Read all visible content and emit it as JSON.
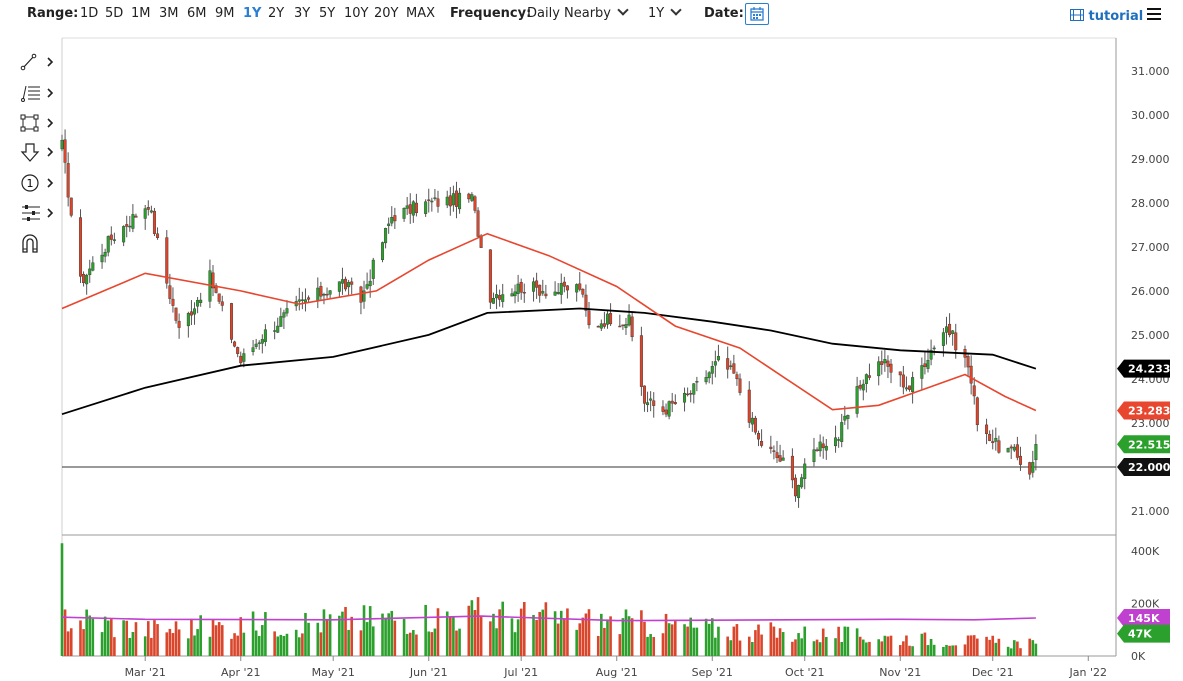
{
  "toolbar": {
    "range_label": "Range:",
    "ranges": [
      "1D",
      "5D",
      "1M",
      "3M",
      "6M",
      "9M",
      "1Y",
      "2Y",
      "3Y",
      "5Y",
      "10Y",
      "20Y",
      "MAX"
    ],
    "active_range": "1Y",
    "frequency_label": "Frequency:",
    "frequency_value": "Daily Nearby",
    "period_value": "1Y",
    "date_label": "Date:",
    "tutorial_label": "tutorial"
  },
  "tools": [
    "line-tool-icon",
    "fib-tool-icon",
    "rectangle-tool-icon",
    "arrow-tool-icon",
    "annotation-tool-icon",
    "indicators-tool-icon",
    "magnet-tool-icon"
  ],
  "colors": {
    "up": "#2ca02c",
    "down": "#d9462b",
    "ma_short": "#e8462e",
    "ma_long": "#000000",
    "volume_avg": "#c040d0",
    "accent": "#2a7fd4"
  },
  "chart_data": [
    {
      "type": "candlestick",
      "x_range": [
        "2021-02-02",
        "2022-01-10"
      ],
      "x_ticks": [
        {
          "date": "2021-03-01",
          "label": "Mar '21"
        },
        {
          "date": "2021-04-01",
          "label": "Apr '21"
        },
        {
          "date": "2021-05-01",
          "label": "May '21"
        },
        {
          "date": "2021-06-01",
          "label": "Jun '21"
        },
        {
          "date": "2021-07-01",
          "label": "Jul '21"
        },
        {
          "date": "2021-08-01",
          "label": "Aug '21"
        },
        {
          "date": "2021-09-01",
          "label": "Sep '21"
        },
        {
          "date": "2021-10-01",
          "label": "Oct '21"
        },
        {
          "date": "2021-11-01",
          "label": "Nov '21"
        },
        {
          "date": "2021-12-01",
          "label": "Dec '21"
        },
        {
          "date": "2022-01-01",
          "label": "Jan '22"
        }
      ],
      "ylim": [
        20.5,
        31.7
      ],
      "y_ticks": [
        "21.000",
        "22.000",
        "23.000",
        "24.000",
        "25.000",
        "26.000",
        "27.000",
        "28.000",
        "29.000",
        "30.000",
        "31.000"
      ],
      "price_anchors": [
        {
          "date": "2021-02-02",
          "close": 29.3
        },
        {
          "date": "2021-02-08",
          "close": 26.2
        },
        {
          "date": "2021-02-18",
          "close": 27.2
        },
        {
          "date": "2021-03-02",
          "close": 28.0
        },
        {
          "date": "2021-03-08",
          "close": 26.2
        },
        {
          "date": "2021-03-12",
          "close": 25.1
        },
        {
          "date": "2021-03-22",
          "close": 26.3
        },
        {
          "date": "2021-04-01",
          "close": 24.4
        },
        {
          "date": "2021-04-08",
          "close": 25.0
        },
        {
          "date": "2021-04-20",
          "close": 25.7
        },
        {
          "date": "2021-05-04",
          "close": 26.2
        },
        {
          "date": "2021-05-10",
          "close": 25.8
        },
        {
          "date": "2021-05-20",
          "close": 27.7
        },
        {
          "date": "2021-06-01",
          "close": 28.0
        },
        {
          "date": "2021-06-15",
          "close": 28.1
        },
        {
          "date": "2021-06-21",
          "close": 25.9
        },
        {
          "date": "2021-07-01",
          "close": 26.1
        },
        {
          "date": "2021-07-12",
          "close": 26.0
        },
        {
          "date": "2021-07-20",
          "close": 26.1
        },
        {
          "date": "2021-07-23",
          "close": 25.2
        },
        {
          "date": "2021-07-30",
          "close": 25.4
        },
        {
          "date": "2021-08-05",
          "close": 25.3
        },
        {
          "date": "2021-08-10",
          "close": 23.5
        },
        {
          "date": "2021-08-16",
          "close": 23.3
        },
        {
          "date": "2021-08-24",
          "close": 23.6
        },
        {
          "date": "2021-09-03",
          "close": 24.4
        },
        {
          "date": "2021-09-08",
          "close": 24.1
        },
        {
          "date": "2021-09-16",
          "close": 22.6
        },
        {
          "date": "2021-09-24",
          "close": 22.1
        },
        {
          "date": "2021-09-28",
          "close": 21.5
        },
        {
          "date": "2021-10-05",
          "close": 22.5
        },
        {
          "date": "2021-10-12",
          "close": 22.7
        },
        {
          "date": "2021-10-20",
          "close": 24.0
        },
        {
          "date": "2021-10-26",
          "close": 24.4
        },
        {
          "date": "2021-11-04",
          "close": 23.8
        },
        {
          "date": "2021-11-12",
          "close": 24.8
        },
        {
          "date": "2021-11-16",
          "close": 25.2
        },
        {
          "date": "2021-11-23",
          "close": 24.3
        },
        {
          "date": "2021-11-26",
          "close": 23.1
        },
        {
          "date": "2021-12-02",
          "close": 22.5
        },
        {
          "date": "2021-12-08",
          "close": 22.3
        },
        {
          "date": "2021-12-13",
          "close": 21.9
        },
        {
          "date": "2021-12-15",
          "close": 22.515
        }
      ],
      "ma_short_label": "23.283",
      "ma_short_points": [
        {
          "date": "2021-02-02",
          "value": 25.6
        },
        {
          "date": "2021-03-01",
          "value": 26.4
        },
        {
          "date": "2021-04-01",
          "value": 26.0
        },
        {
          "date": "2021-04-20",
          "value": 25.7
        },
        {
          "date": "2021-05-15",
          "value": 26.0
        },
        {
          "date": "2021-06-01",
          "value": 26.7
        },
        {
          "date": "2021-06-20",
          "value": 27.3
        },
        {
          "date": "2021-07-10",
          "value": 26.8
        },
        {
          "date": "2021-08-01",
          "value": 26.1
        },
        {
          "date": "2021-08-20",
          "value": 25.2
        },
        {
          "date": "2021-09-10",
          "value": 24.7
        },
        {
          "date": "2021-09-25",
          "value": 24.0
        },
        {
          "date": "2021-10-10",
          "value": 23.3
        },
        {
          "date": "2021-10-25",
          "value": 23.4
        },
        {
          "date": "2021-11-10",
          "value": 23.8
        },
        {
          "date": "2021-11-22",
          "value": 24.1
        },
        {
          "date": "2021-12-05",
          "value": 23.6
        },
        {
          "date": "2021-12-15",
          "value": 23.283
        }
      ],
      "ma_long_label": "24.233",
      "ma_long_points": [
        {
          "date": "2021-02-02",
          "value": 23.2
        },
        {
          "date": "2021-03-01",
          "value": 23.8
        },
        {
          "date": "2021-04-01",
          "value": 24.3
        },
        {
          "date": "2021-05-01",
          "value": 24.5
        },
        {
          "date": "2021-06-01",
          "value": 25.0
        },
        {
          "date": "2021-06-20",
          "value": 25.5
        },
        {
          "date": "2021-07-20",
          "value": 25.6
        },
        {
          "date": "2021-08-10",
          "value": 25.5
        },
        {
          "date": "2021-09-01",
          "value": 25.3
        },
        {
          "date": "2021-09-20",
          "value": 25.1
        },
        {
          "date": "2021-10-10",
          "value": 24.8
        },
        {
          "date": "2021-11-01",
          "value": 24.65
        },
        {
          "date": "2021-12-01",
          "value": 24.55
        },
        {
          "date": "2021-12-15",
          "value": 24.233
        }
      ],
      "last_price_label": "22.515",
      "horizontal_line": {
        "value": 22.0,
        "label": "22.000"
      }
    },
    {
      "type": "bar",
      "series_kind": "volume",
      "ylim": [
        0,
        450
      ],
      "y_ticks": [
        "400K",
        "200K",
        "0K"
      ],
      "volume_anchors": [
        {
          "date": "2021-02-02",
          "value": 430
        },
        {
          "date": "2021-02-03",
          "value": 150
        },
        {
          "date": "2021-03-01",
          "value": 100
        },
        {
          "date": "2021-06-18",
          "value": 160
        },
        {
          "date": "2021-09-20",
          "value": 90
        },
        {
          "date": "2021-12-15",
          "value": 47
        }
      ],
      "avg_points": [
        {
          "date": "2021-02-02",
          "value": 148
        },
        {
          "date": "2021-03-01",
          "value": 140
        },
        {
          "date": "2021-05-01",
          "value": 138
        },
        {
          "date": "2021-06-18",
          "value": 152
        },
        {
          "date": "2021-08-01",
          "value": 135
        },
        {
          "date": "2021-11-01",
          "value": 140
        },
        {
          "date": "2021-11-25",
          "value": 138
        },
        {
          "date": "2021-12-15",
          "value": 145
        }
      ],
      "avg_label": "145K",
      "last_label": "47K"
    }
  ]
}
